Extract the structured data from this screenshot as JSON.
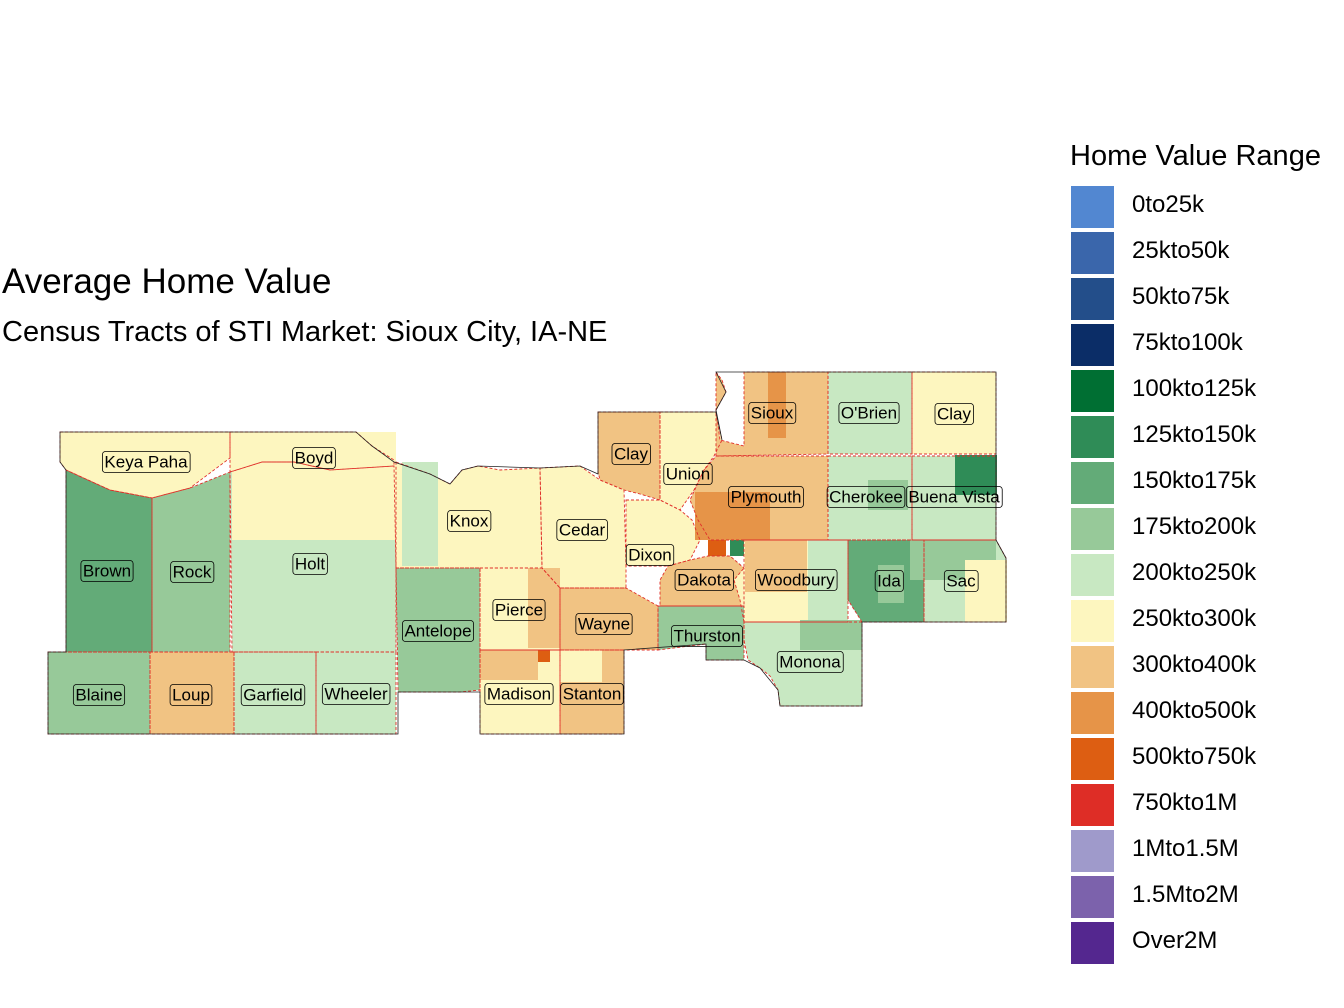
{
  "title": "Average Home Value",
  "subtitle": "Census Tracts of STI Market: Sioux City, IA-NE",
  "legend": {
    "title": "Home Value Range",
    "items": [
      {
        "label": "0to25k",
        "color": "#5287d1"
      },
      {
        "label": "25kto50k",
        "color": "#3a66ab"
      },
      {
        "label": "50kto75k",
        "color": "#234e8a"
      },
      {
        "label": "75kto100k",
        "color": "#0b2d67"
      },
      {
        "label": "100kto125k",
        "color": "#006f33"
      },
      {
        "label": "125kto150k",
        "color": "#2f8c57"
      },
      {
        "label": "150kto175k",
        "color": "#63ab78"
      },
      {
        "label": "175kto200k",
        "color": "#97c999"
      },
      {
        "label": "200kto250k",
        "color": "#c8e8c2"
      },
      {
        "label": "250kto300k",
        "color": "#fdf6bf"
      },
      {
        "label": "300kto400k",
        "color": "#f1c383"
      },
      {
        "label": "400kto500k",
        "color": "#e69448"
      },
      {
        "label": "500kto750k",
        "color": "#dd5e12"
      },
      {
        "label": "750kto1M",
        "color": "#de2d26"
      },
      {
        "label": "1Mto1.5M",
        "color": "#9f9acb"
      },
      {
        "label": "1.5Mto2M",
        "color": "#7c62ac"
      },
      {
        "label": "Over2M",
        "color": "#54278f"
      }
    ]
  },
  "counties": [
    {
      "name": "Keya Paha",
      "range": "250kto300k"
    },
    {
      "name": "Boyd",
      "range": "250kto300k"
    },
    {
      "name": "Brown",
      "range": "150kto175k"
    },
    {
      "name": "Rock",
      "range": "175kto200k"
    },
    {
      "name": "Holt",
      "range": "200kto250k"
    },
    {
      "name": "Knox",
      "range": "250kto300k"
    },
    {
      "name": "Cedar",
      "range": "250kto300k"
    },
    {
      "name": "Antelope",
      "range": "175kto200k"
    },
    {
      "name": "Pierce",
      "range": "250kto300k"
    },
    {
      "name": "Wayne",
      "range": "300kto400k"
    },
    {
      "name": "Blaine",
      "range": "175kto200k"
    },
    {
      "name": "Loup",
      "range": "300kto400k"
    },
    {
      "name": "Garfield",
      "range": "200kto250k"
    },
    {
      "name": "Wheeler",
      "range": "200kto250k"
    },
    {
      "name": "Madison",
      "range": "250kto300k"
    },
    {
      "name": "Stanton",
      "range": "300kto400k"
    },
    {
      "name": "Clay",
      "range": "300kto400k"
    },
    {
      "name": "Union",
      "range": "250kto300k"
    },
    {
      "name": "Dixon",
      "range": "250kto300k"
    },
    {
      "name": "Dakota",
      "range": "300kto400k"
    },
    {
      "name": "Thurston",
      "range": "175kto200k"
    },
    {
      "name": "Sioux",
      "range": "300kto400k"
    },
    {
      "name": "O'Brien",
      "range": "200kto250k"
    },
    {
      "name": "Clay",
      "range": "250kto300k"
    },
    {
      "name": "Plymouth",
      "range": "300kto400k"
    },
    {
      "name": "Cherokee",
      "range": "200kto250k"
    },
    {
      "name": "Buena Vista",
      "range": "200kto250k"
    },
    {
      "name": "Woodbury",
      "range": "250kto300k"
    },
    {
      "name": "Ida",
      "range": "150kto175k"
    },
    {
      "name": "Sac",
      "range": "200kto250k"
    },
    {
      "name": "Monona",
      "range": "200kto250k"
    }
  ]
}
